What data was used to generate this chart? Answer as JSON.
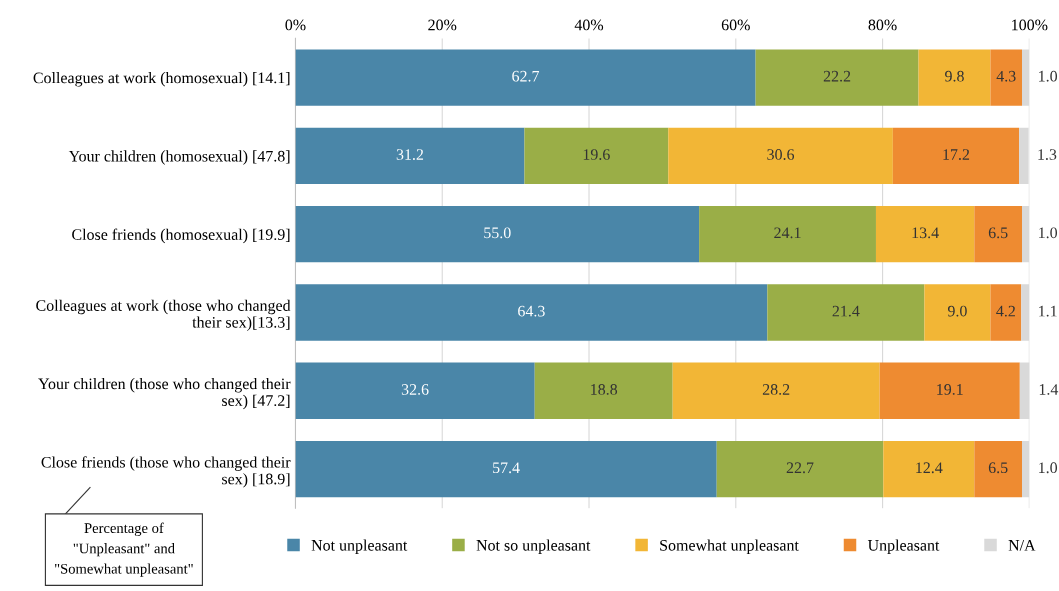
{
  "chart_data": {
    "type": "bar",
    "orientation": "horizontal",
    "stacked": true,
    "categories": [
      "Colleagues at work (homosexual) [14.1]",
      "Your children (homosexual) [47.8]",
      "Close friends (homosexual) [19.9]",
      "Colleagues at work (those who changed\ntheir sex)[13.3]",
      "Your children (those who changed their\nsex) [47.2]",
      "Close friends (those who changed their\nsex) [18.9]"
    ],
    "series": [
      {
        "name": "Not unpleasant",
        "color": "#4a86a8",
        "values": [
          62.7,
          31.2,
          55,
          64.3,
          32.6,
          57.4
        ],
        "value_labels": [
          "62.7",
          "31.2",
          "55.0",
          "64.3",
          "32.6",
          "57.4"
        ]
      },
      {
        "name": "Not so unpleasant",
        "color": "#9aae47",
        "values": [
          22.2,
          19.6,
          24.1,
          21.4,
          18.8,
          22.7
        ],
        "value_labels": [
          "22.2",
          "19.6",
          "24.1",
          "21.4",
          "18.8",
          "22.7"
        ]
      },
      {
        "name": "Somewhat unpleasant",
        "color": "#f2b636",
        "values": [
          9.8,
          30.6,
          13.4,
          9,
          28.2,
          12.4
        ],
        "value_labels": [
          "9.8",
          "30.6",
          "13.4",
          "9.0",
          "28.2",
          "12.4"
        ]
      },
      {
        "name": "Unpleasant",
        "color": "#ee8b31",
        "values": [
          4.3,
          17.2,
          6.5,
          4.2,
          19.1,
          6.5
        ],
        "value_labels": [
          "4.3",
          "17.2",
          "6.5",
          "4.2",
          "19.1",
          "6.5"
        ]
      },
      {
        "name": "N/A",
        "color": "#d9d9d9",
        "values": [
          1,
          1.3,
          1,
          1.1,
          1.4,
          1
        ],
        "value_labels": [
          "1.0",
          "1.3",
          "1.0",
          "1.1",
          "1.4",
          "1.0"
        ]
      }
    ],
    "xlim": [
      0,
      100
    ],
    "xticks": [
      {
        "value": 0,
        "label": "0%"
      },
      {
        "value": 20,
        "label": "20%"
      },
      {
        "value": 40,
        "label": "40%"
      },
      {
        "value": 60,
        "label": "60%"
      },
      {
        "value": 80,
        "label": "80%"
      },
      {
        "value": 100,
        "label": "100%"
      }
    ],
    "grid": "x",
    "legend": "bottom",
    "annotations": [
      "Percentage of\n\"Unpleasant\" and\n\"Somewhat unpleasant\""
    ]
  }
}
